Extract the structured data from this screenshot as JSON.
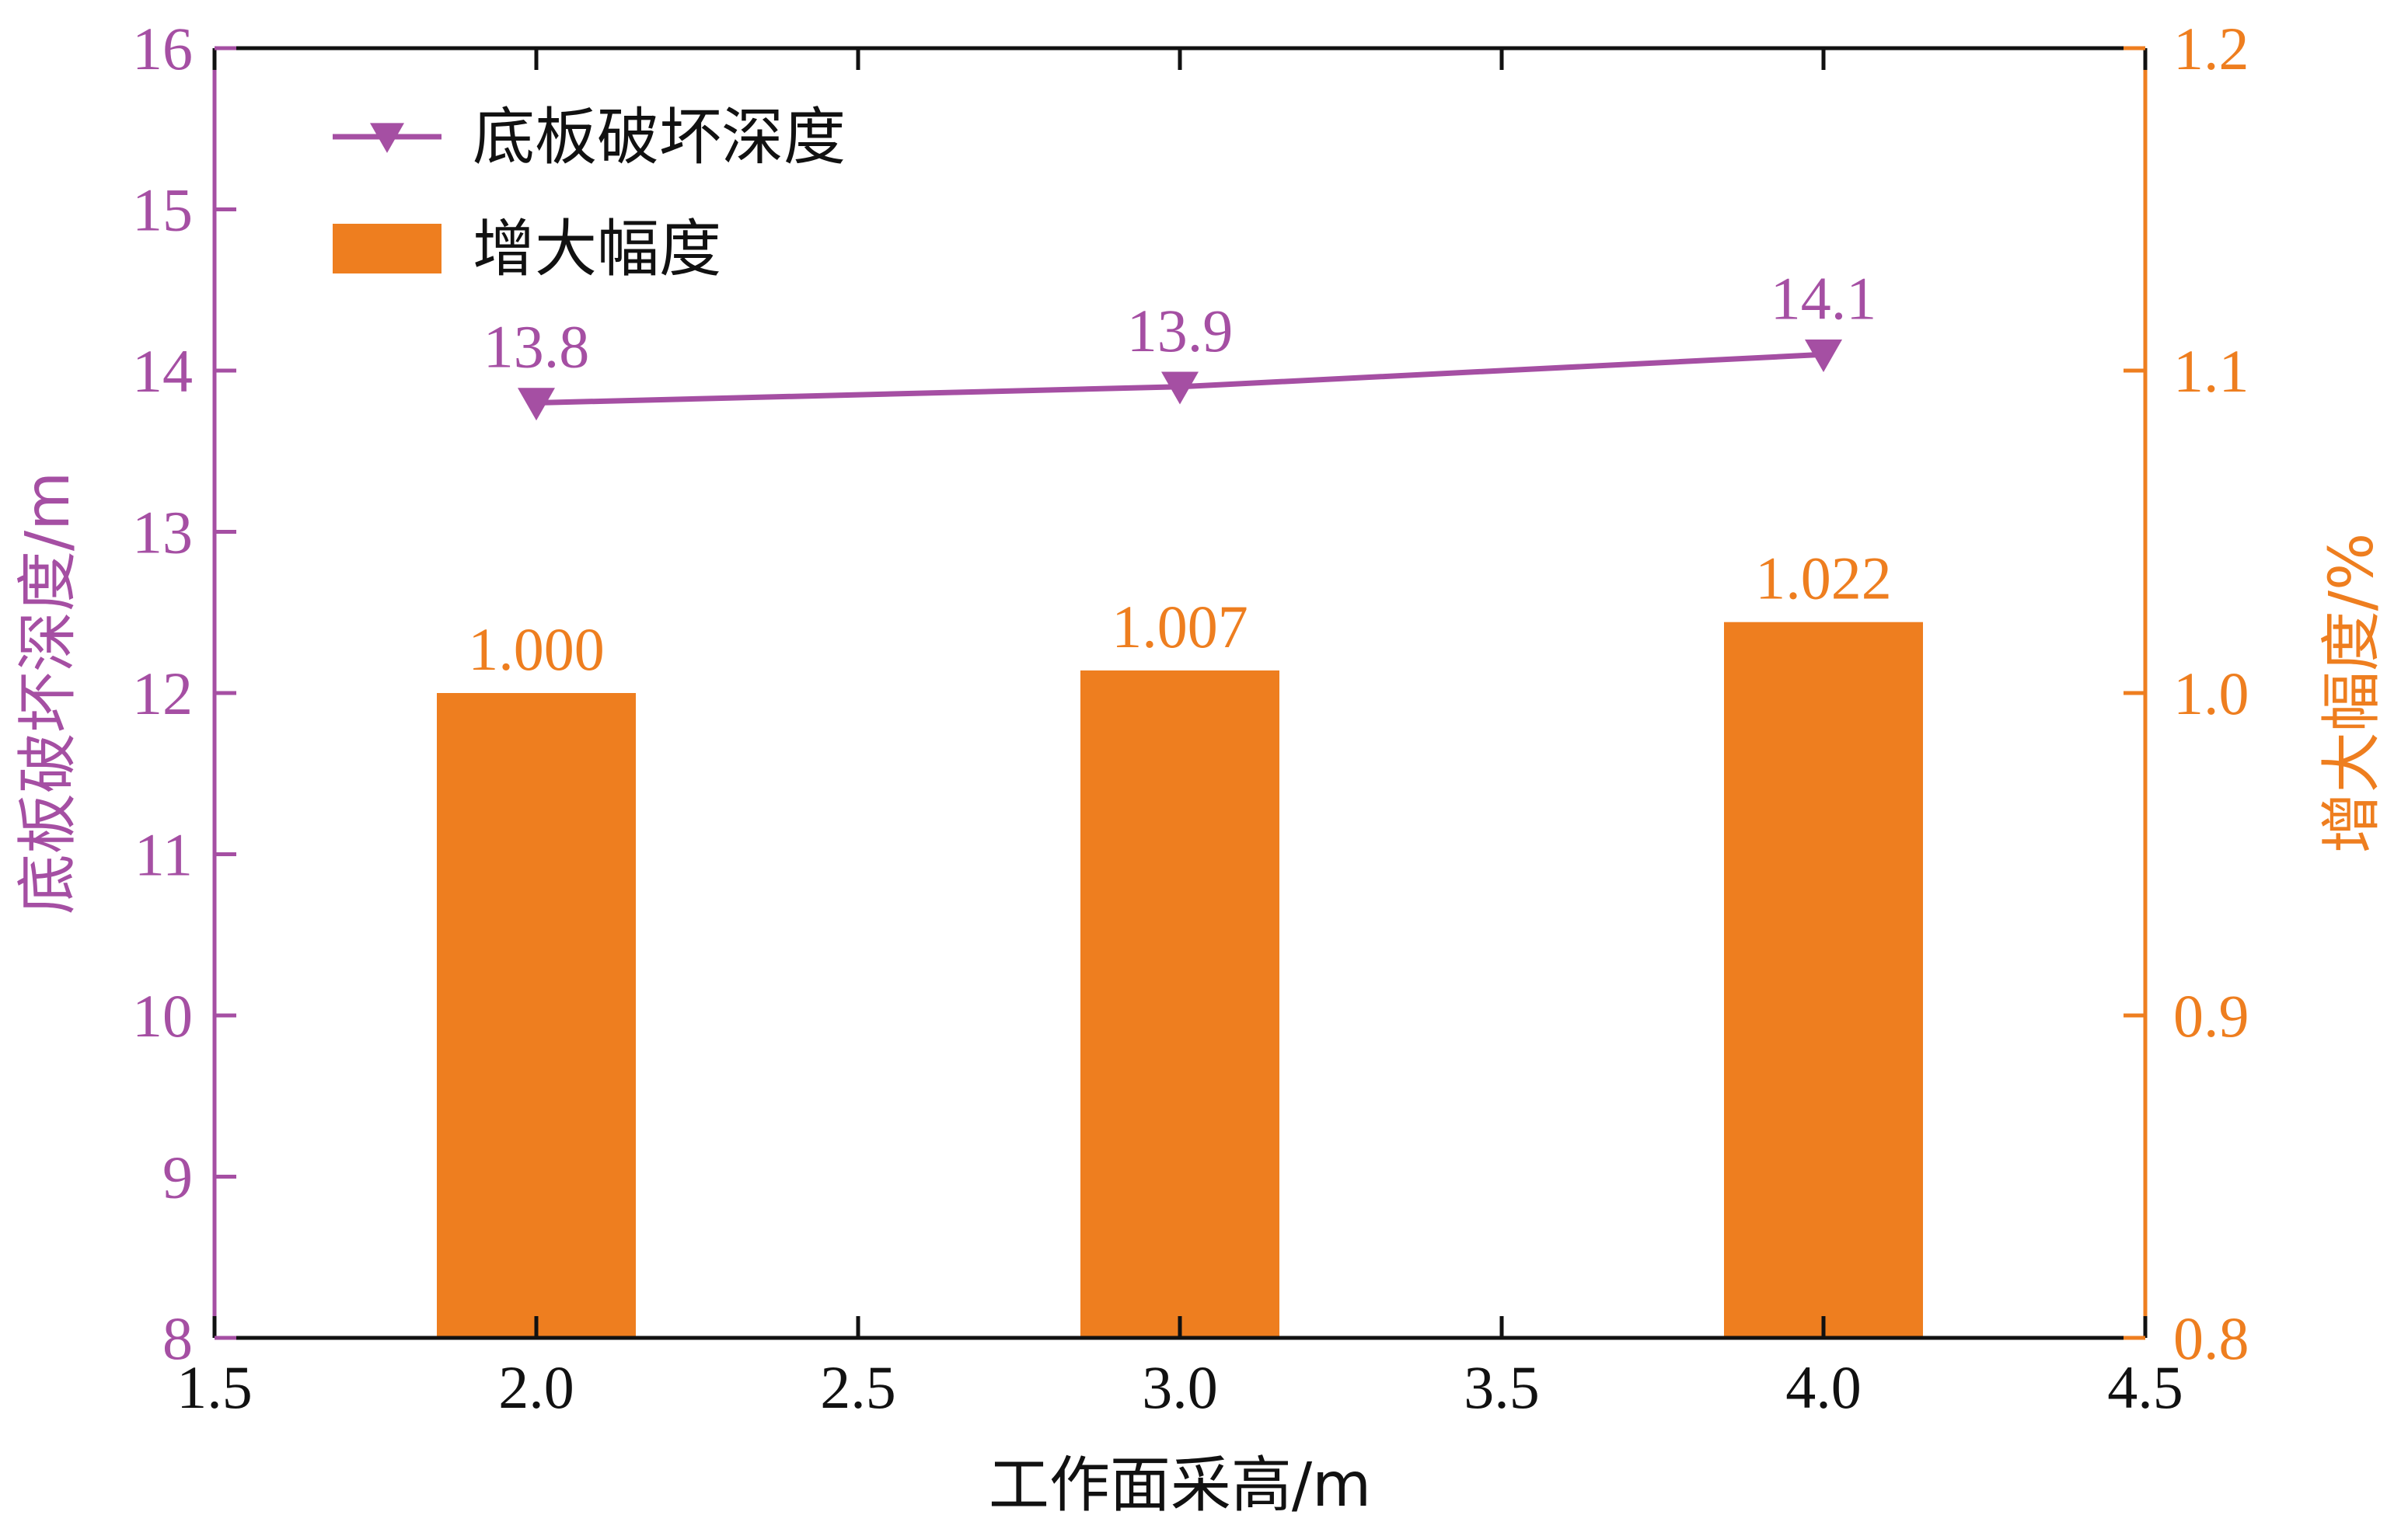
{
  "chart_data": {
    "type": "bar+line",
    "xlabel": "工作面采高/m",
    "x_ticks": [
      "1.5",
      "2.0",
      "2.5",
      "3.0",
      "3.5",
      "4.0",
      "4.5"
    ],
    "xlim": [
      1.5,
      4.5
    ],
    "y_left": {
      "label": "底板破坏深度/m",
      "lim": [
        8,
        16
      ],
      "ticks": [
        "8",
        "9",
        "10",
        "11",
        "12",
        "13",
        "14",
        "15",
        "16"
      ],
      "color": "#A54FA3"
    },
    "y_right": {
      "label": "增大幅度/%",
      "lim": [
        0.8,
        1.2
      ],
      "ticks": [
        "0.8",
        "0.9",
        "1.0",
        "1.1",
        "1.2"
      ],
      "color": "#EE7E1F"
    },
    "series": [
      {
        "name": "底板破坏深度",
        "kind": "line",
        "axis": "left",
        "marker": "triangle-down",
        "color": "#A54FA3",
        "x": [
          2.0,
          3.0,
          4.0
        ],
        "values": [
          13.8,
          13.9,
          14.1
        ],
        "labels": [
          "13.8",
          "13.9",
          "14.1"
        ]
      },
      {
        "name": "增大幅度",
        "kind": "bar",
        "axis": "right",
        "color": "#EE7E1F",
        "x": [
          2.0,
          3.0,
          4.0
        ],
        "values": [
          1.0,
          1.007,
          1.022
        ],
        "labels": [
          "1.000",
          "1.007",
          "1.022"
        ]
      }
    ],
    "legend": {
      "position": "top-left"
    },
    "grid": false
  }
}
